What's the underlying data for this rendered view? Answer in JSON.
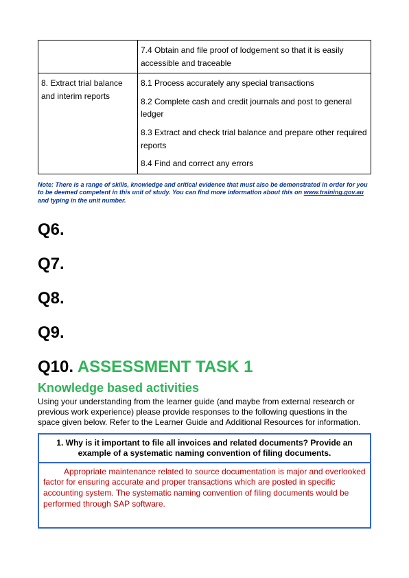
{
  "table": {
    "row1": {
      "left": "",
      "right": "7.4 Obtain and file proof of lodgement so that it is easily accessible and traceable"
    },
    "row2": {
      "left": "8. Extract trial balance and interim reports",
      "criteria": [
        "8.1 Process accurately any special transactions",
        "8.2 Complete cash and credit journals and post to general ledger",
        "8.3 Extract and check trial balance and prepare other required reports",
        "8.4 Find and correct any errors"
      ]
    }
  },
  "note": {
    "pre": "Note:  There is a range of skills, knowledge and critical evidence that must also be demonstrated in order for you to be deemed competent in this unit of study.  You can find more information about this on ",
    "link": "www.training.gov.au",
    "post": " and typing in the unit number."
  },
  "questions": {
    "q6": "Q6.",
    "q7": "Q7.",
    "q8": "Q8.",
    "q9": "Q9."
  },
  "q10": {
    "label": "Q10. ",
    "title": "ASSESSMENT TASK 1",
    "subheading": "Knowledge based activities",
    "intro": "Using your understanding from the learner guide (and maybe from external research or previous work experience) please provide responses to the following questions in the space given below. Refer to the Learner Guide and Additional Resources for information.",
    "question": "1. Why is it important to file all invoices and related documents? Provide an example of a systematic naming convention of filing documents.",
    "answer": "Appropriate maintenance related to source documentation is major and overlooked factor for ensuring accurate and proper transactions which are posted in specific accounting system. The systematic naming convention of filing documents would be performed through SAP software."
  },
  "colors": {
    "accent_green": "#2fb457",
    "accent_blue": "#3366cc",
    "note_blue": "#003399",
    "answer_red": "#c00000"
  }
}
